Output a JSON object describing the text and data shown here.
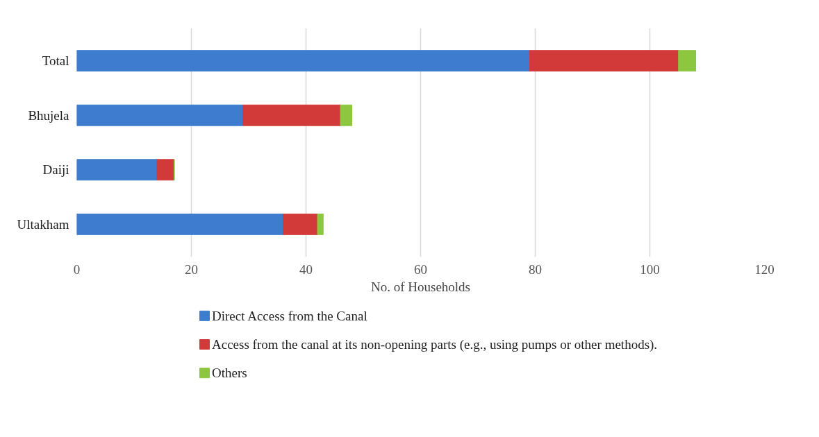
{
  "chart_data": {
    "type": "bar",
    "orientation": "horizontal",
    "stacked": true,
    "categories": [
      "Total",
      "Bhujela",
      "Daiji",
      "Ultakham"
    ],
    "series": [
      {
        "name": "Direct Access from the Canal",
        "color": "#3d7ccf",
        "values": [
          79,
          29,
          14,
          36
        ]
      },
      {
        "name": "Access from the canal at its non-opening parts (e.g., using pumps or other methods).",
        "color": "#d23a3a",
        "values": [
          26,
          17,
          3,
          6
        ]
      },
      {
        "name": "Others",
        "color": "#8dc63f",
        "values": [
          3,
          2,
          0,
          1
        ]
      }
    ],
    "xlabel": "No. of Households",
    "xlim": [
      0,
      120
    ],
    "xticks": [
      0,
      20,
      40,
      60,
      80,
      100,
      120
    ],
    "grid": "x",
    "legend": "bottom"
  }
}
